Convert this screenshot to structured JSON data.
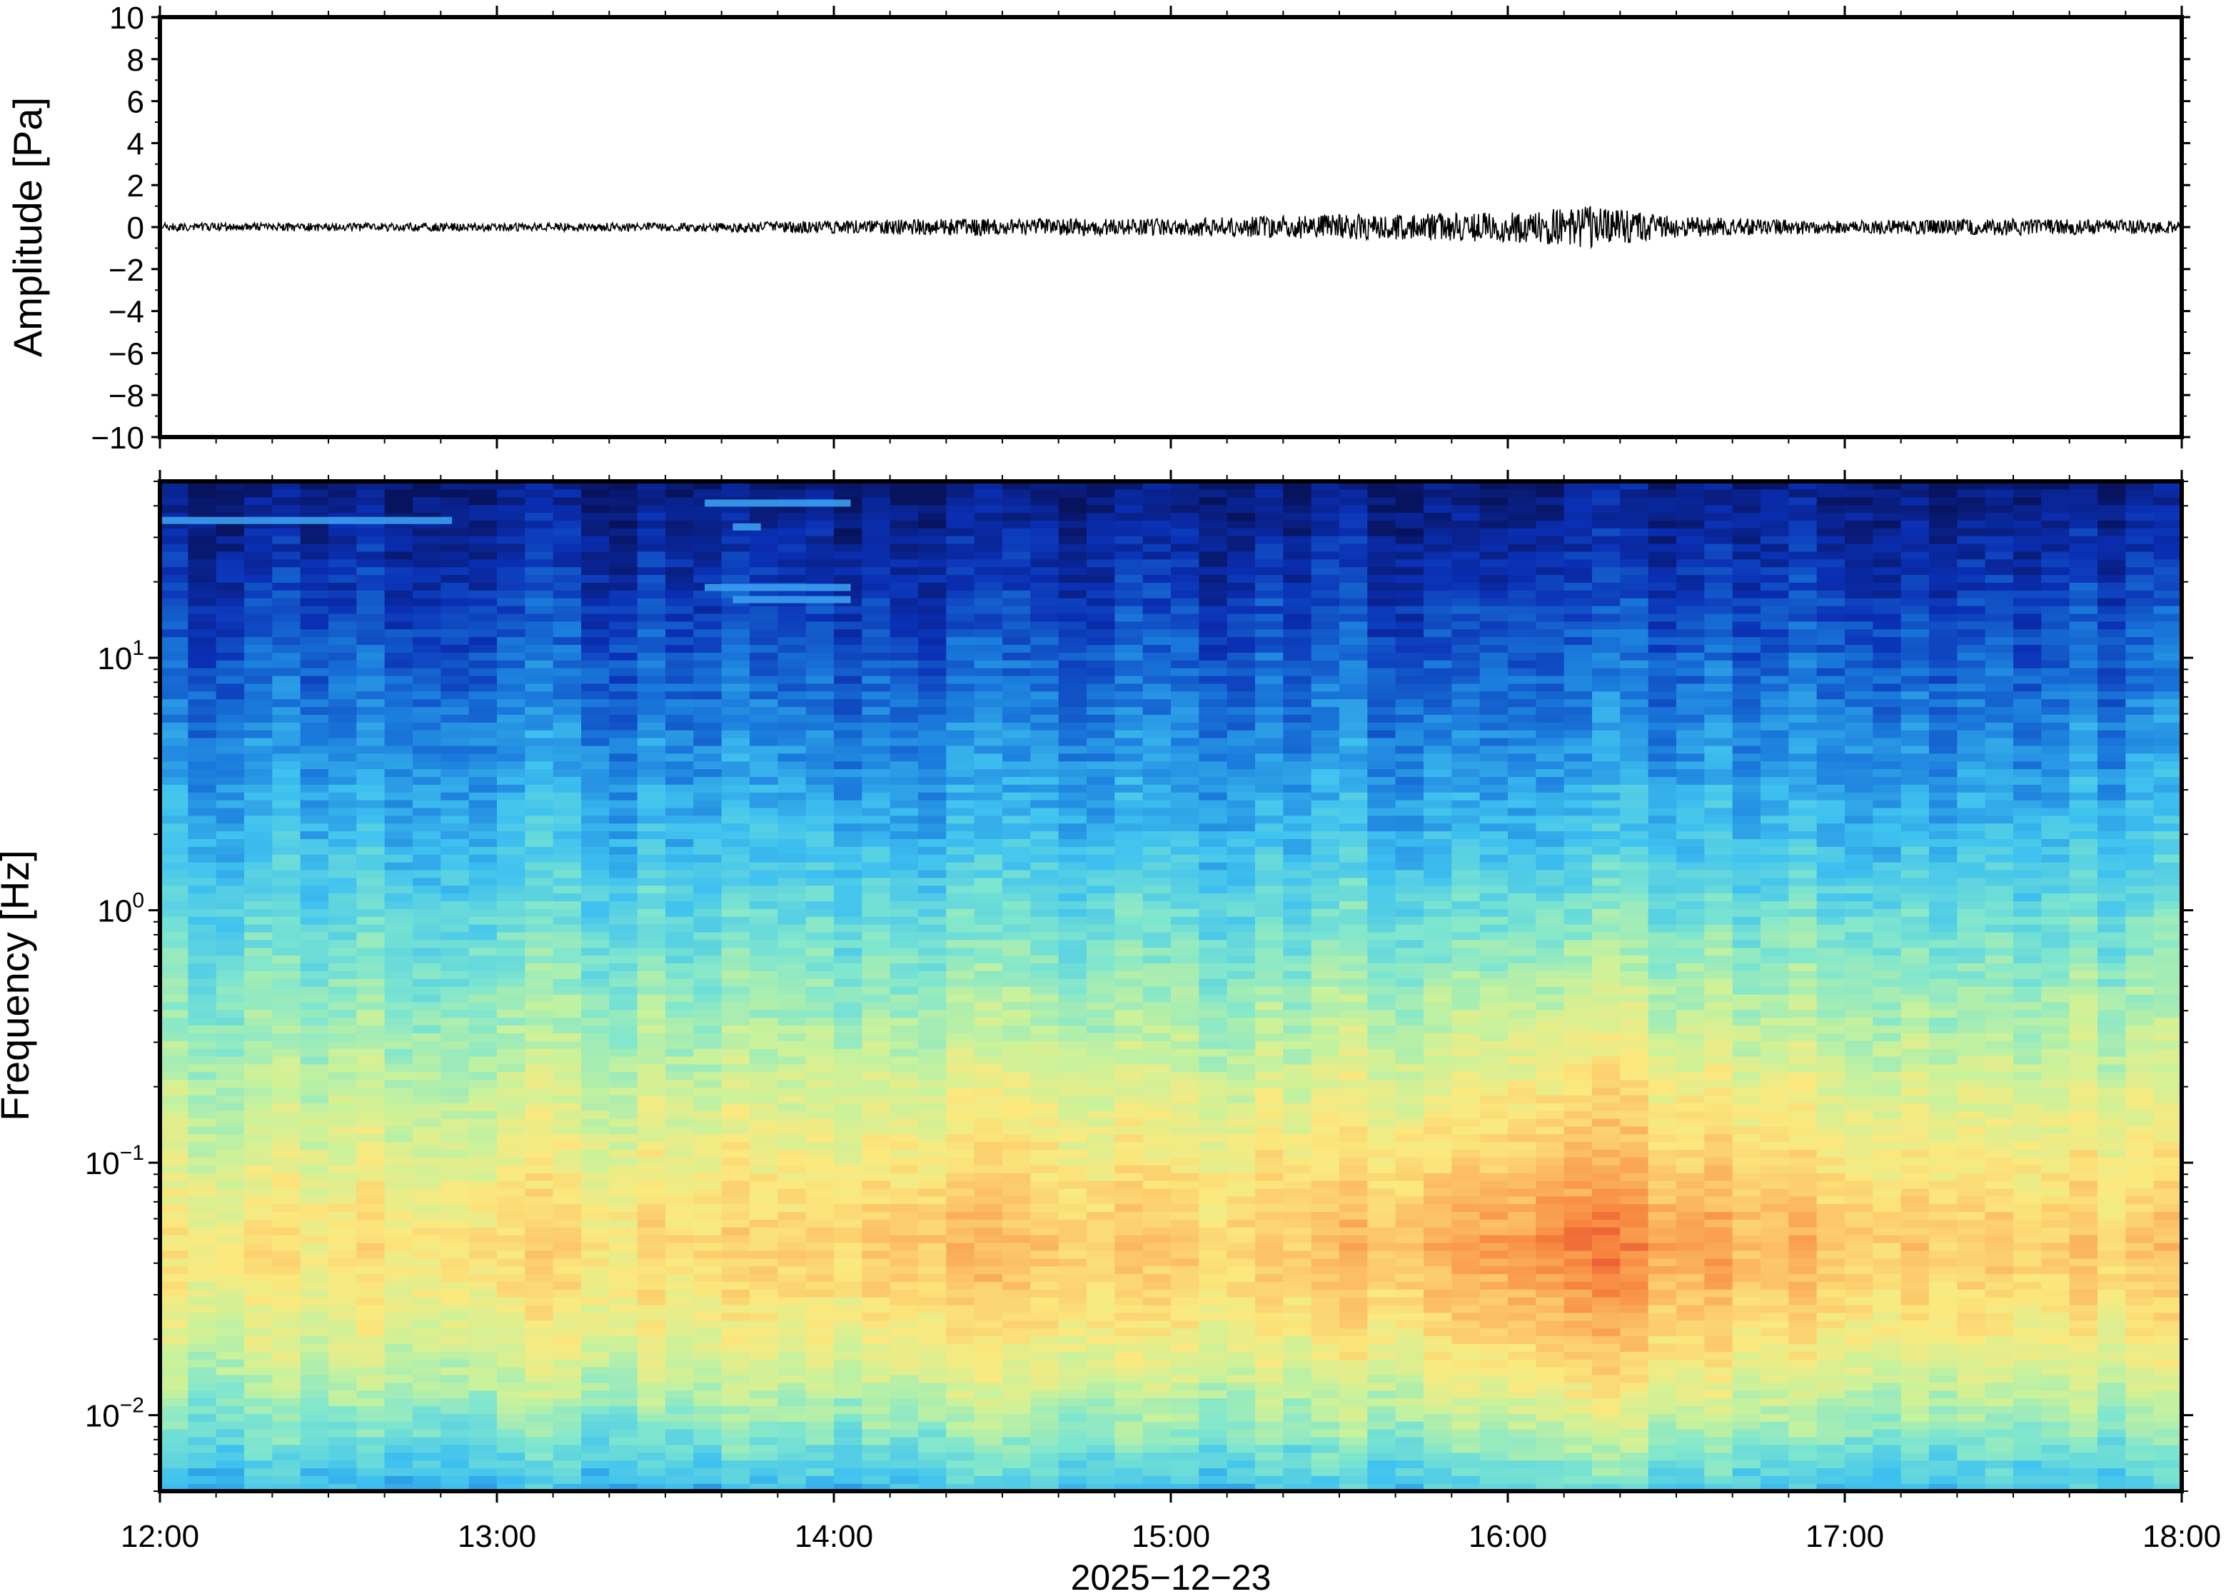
{
  "chart_data": [
    {
      "type": "line",
      "panel": "waveform",
      "ylabel": "Amplitude [Pa]",
      "ylim": [
        -10,
        10
      ],
      "yticks": [
        10,
        8,
        6,
        4,
        2,
        0,
        -2,
        -4,
        -6,
        -8,
        -10
      ],
      "ytick_labels": [
        "10",
        "8",
        "6",
        "4",
        "2",
        "0",
        "−2",
        "−4",
        "−6",
        "−8",
        "−10"
      ],
      "xlim": [
        "12:00",
        "18:00"
      ],
      "series": [
        {
          "x": [
            "12:00",
            "12:30",
            "13:00",
            "13:30",
            "14:00",
            "14:15",
            "14:30",
            "15:00",
            "15:30",
            "16:00",
            "16:15",
            "16:30",
            "17:00",
            "17:30",
            "18:00"
          ],
          "envelope_pa": [
            0.2,
            0.2,
            0.2,
            0.2,
            0.3,
            0.4,
            0.4,
            0.4,
            0.6,
            0.7,
            1.0,
            0.5,
            0.3,
            0.4,
            0.3
          ]
        }
      ],
      "grid": false,
      "line_color": "#000000"
    },
    {
      "type": "heatmap",
      "panel": "spectrogram",
      "ylabel": "Frequency [Hz]",
      "xlabel": "2025−12−23",
      "y_scale": "log",
      "ylim_hz": [
        0.005,
        50
      ],
      "yticks": [
        {
          "base": "10",
          "exp": "1"
        },
        {
          "base": "10",
          "exp": "0"
        },
        {
          "base": "10",
          "exp": "−1"
        },
        {
          "base": "10",
          "exp": "−2"
        }
      ],
      "xlim": [
        "12:00",
        "18:00"
      ],
      "xticks": [
        "12:00",
        "13:00",
        "14:00",
        "15:00",
        "16:00",
        "17:00",
        "18:00"
      ],
      "colormap": [
        "#08135e",
        "#0a2fb4",
        "#1a7bdc",
        "#3fc2f0",
        "#7ee6cf",
        "#c8f29c",
        "#fbe97e",
        "#fcc066",
        "#f7863f",
        "#e23d2a"
      ],
      "notes_visible": "no color bar or legend shown",
      "intensity_model": {
        "time_activity": [
          {
            "time": "12:00",
            "level": 0.05
          },
          {
            "time": "14:00",
            "level": 0.3
          },
          {
            "time": "14:15",
            "level": 0.55
          },
          {
            "time": "15:00",
            "level": 0.35
          },
          {
            "time": "15:30",
            "level": 0.45
          },
          {
            "time": "16:15",
            "level": 1.0
          },
          {
            "time": "16:30",
            "level": 0.7
          },
          {
            "time": "17:00",
            "level": 0.4
          },
          {
            "time": "18:00",
            "level": 0.35
          }
        ],
        "peak_frequency_hz": 0.05,
        "narrowband_lines": [
          {
            "start": "12:00",
            "end": "12:52",
            "freq_hz": 35
          },
          {
            "start": "13:37",
            "end": "14:03",
            "freq_hz": 41
          },
          {
            "start": "13:42",
            "end": "13:47",
            "freq_hz": 33
          },
          {
            "start": "13:37",
            "end": "14:03",
            "freq_hz": 19
          },
          {
            "start": "13:42",
            "end": "14:03",
            "freq_hz": 17
          }
        ]
      }
    }
  ]
}
